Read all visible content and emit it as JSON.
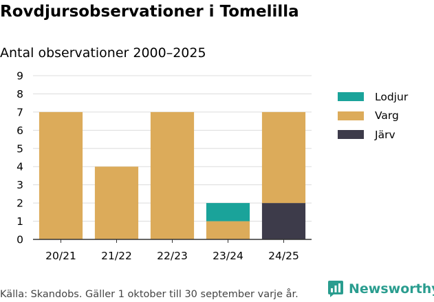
{
  "colors": {
    "lodjur": "#1aa39a",
    "varg": "#dcab5a",
    "jarv": "#3d3b4a",
    "grid": "#dcdcdc",
    "brand": "#2a9d8f"
  },
  "chart_data": {
    "type": "bar",
    "stacked": true,
    "title": "Rovdjursobservationer i Tomelilla",
    "subtitle": "Antal observationer 2000–2025",
    "categories": [
      "20/21",
      "21/22",
      "22/23",
      "23/24",
      "24/25"
    ],
    "series": [
      {
        "name": "Järv",
        "values": [
          0,
          0,
          0,
          0,
          2
        ]
      },
      {
        "name": "Varg",
        "values": [
          7,
          4,
          7,
          1,
          5
        ]
      },
      {
        "name": "Lodjur",
        "values": [
          0,
          0,
          0,
          1,
          0
        ]
      }
    ],
    "legend_order": [
      "Lodjur",
      "Varg",
      "Järv"
    ],
    "ylim": [
      0,
      9
    ],
    "yticks": [
      0,
      1,
      2,
      3,
      4,
      5,
      6,
      7,
      8,
      9
    ],
    "xlabel": "",
    "ylabel": "",
    "grid": true,
    "legend_position": "right"
  },
  "footer": {
    "source": "Källa: Skandobs. Gäller 1 oktober till 30 september varje år.",
    "brand": "Newsworthy"
  }
}
